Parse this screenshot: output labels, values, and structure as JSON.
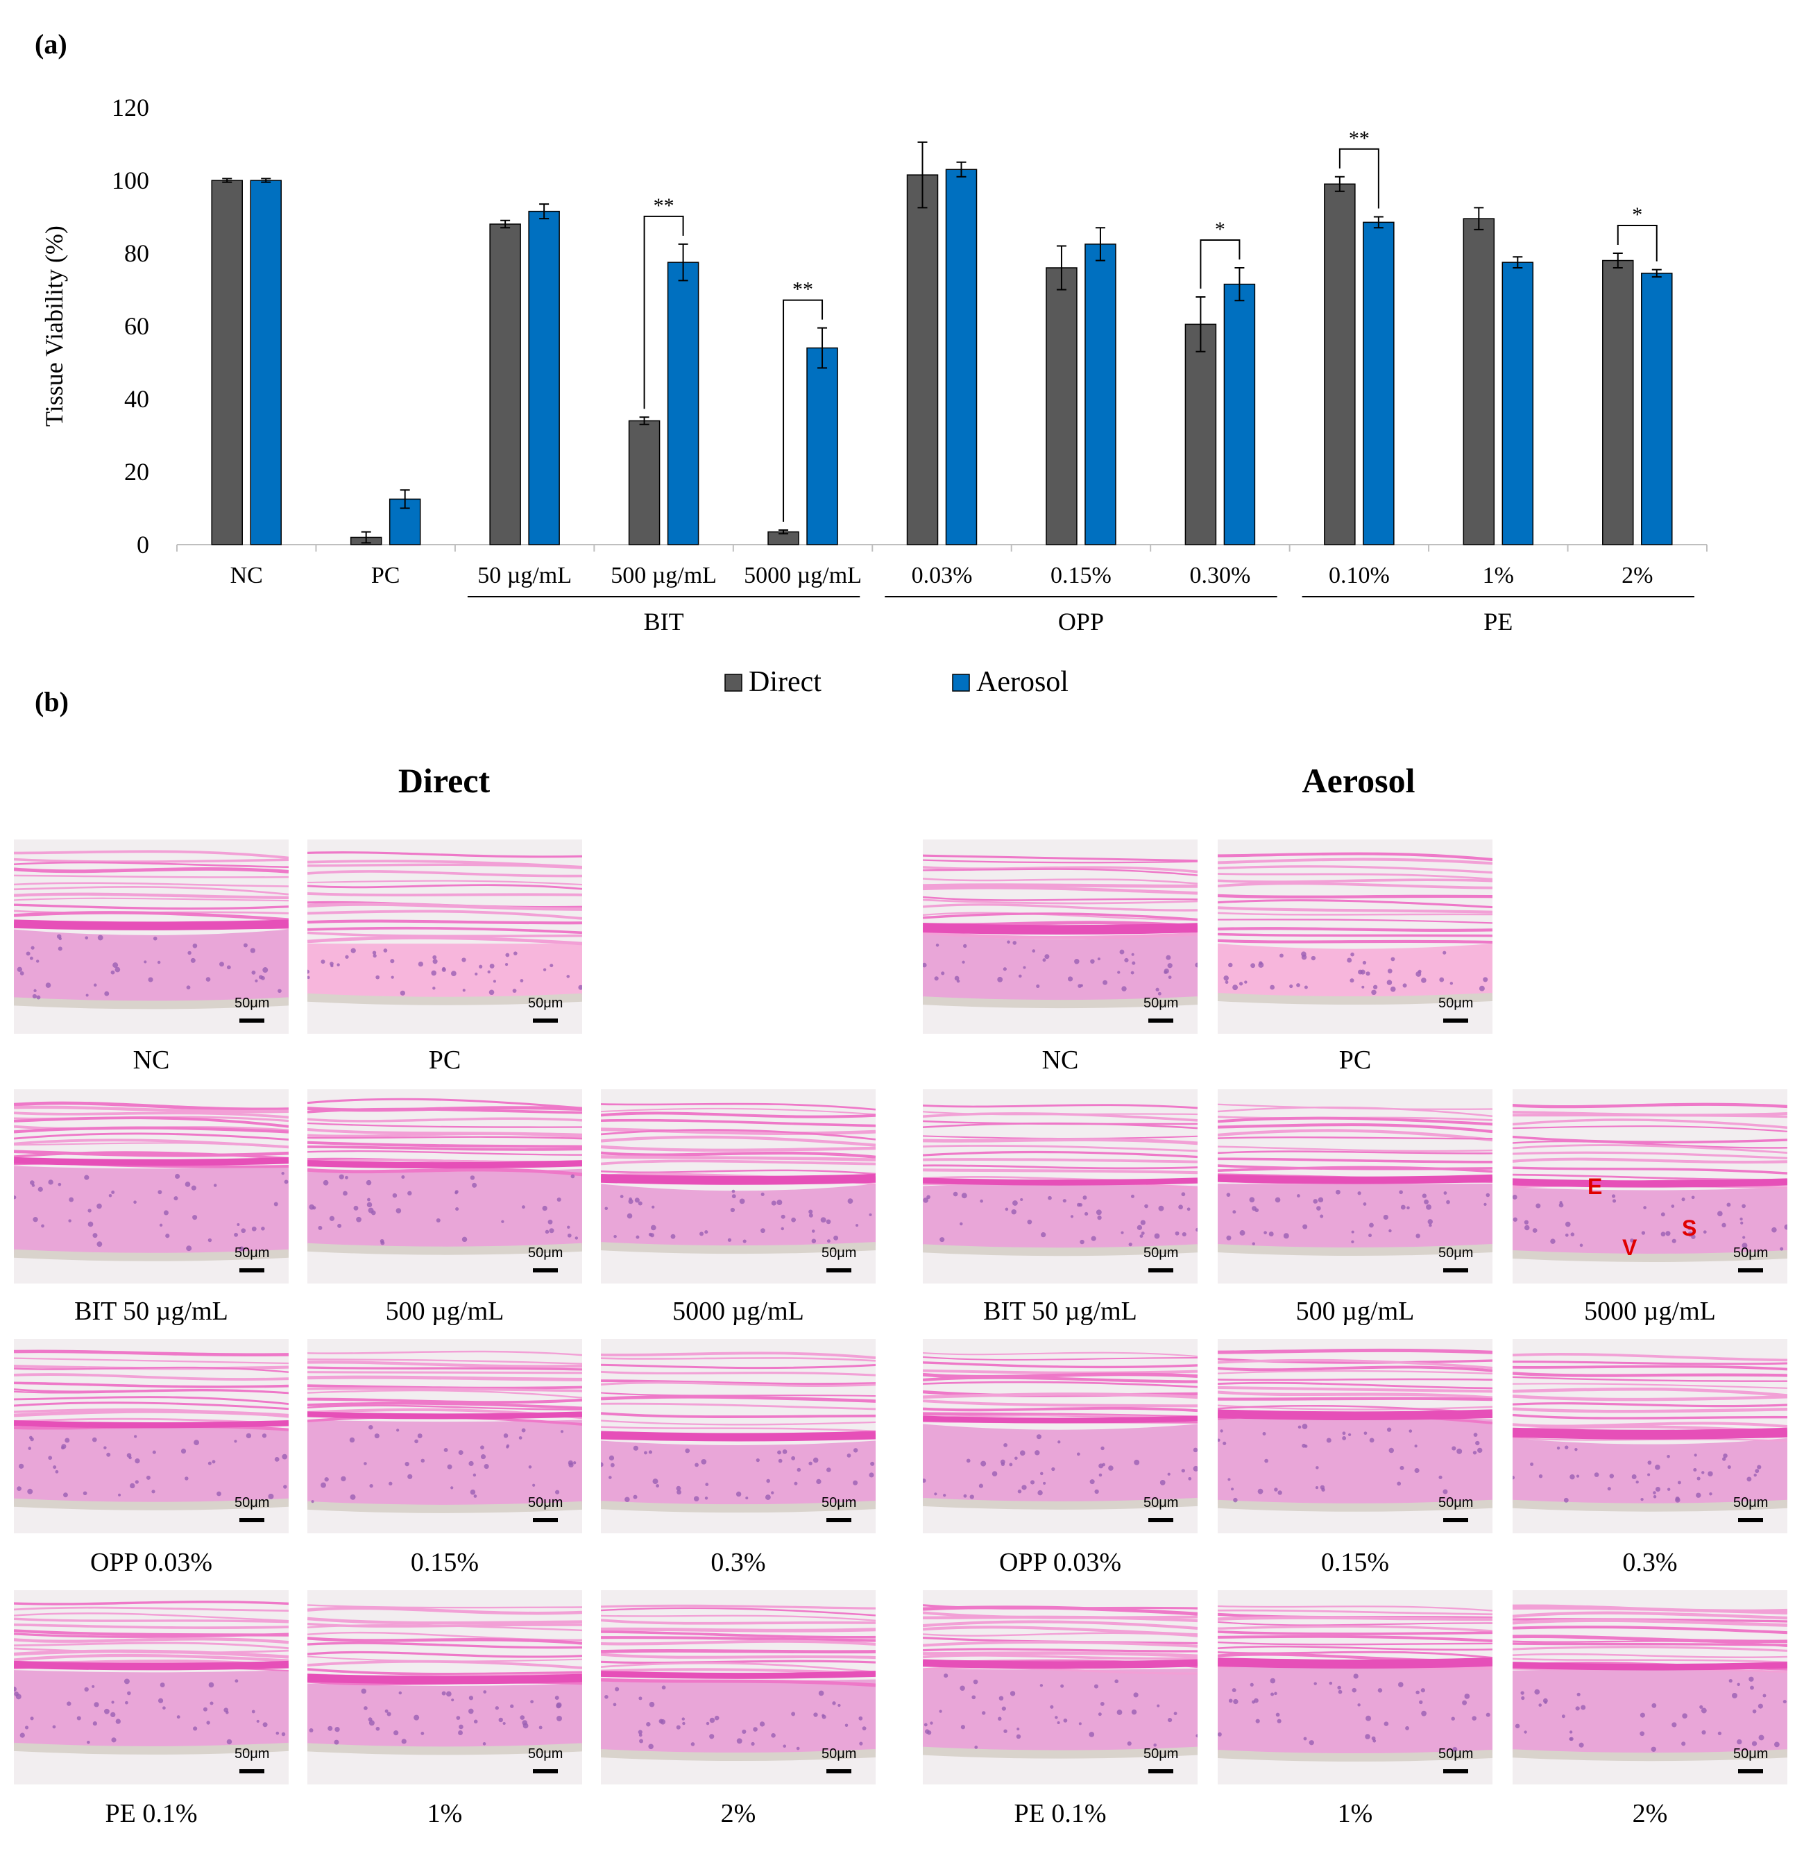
{
  "panel_a_label": "(a)",
  "panel_b_label": "(b)",
  "colors": {
    "direct": "#595959",
    "aerosol": "#0070c0"
  },
  "chart_data": {
    "type": "bar",
    "ylabel": "Tissue Viability (%)",
    "ylim": [
      0,
      120
    ],
    "yticks": [
      "0",
      "20",
      "40",
      "60",
      "80",
      "100",
      "120"
    ],
    "categories": [
      "NC",
      "PC",
      "50 µg/mL",
      "500 µg/mL",
      "5000 µg/mL",
      "0.03%",
      "0.15%",
      "0.30%",
      "0.10%",
      "1%",
      "2%"
    ],
    "groups": [
      {
        "label": "BIT",
        "from": 2,
        "to": 4
      },
      {
        "label": "OPP",
        "from": 5,
        "to": 7
      },
      {
        "label": "PE",
        "from": 8,
        "to": 10
      }
    ],
    "series": [
      {
        "name": "Direct",
        "values": [
          100,
          2,
          88,
          34,
          3.5,
          101.5,
          76,
          60.5,
          99,
          89.5,
          78
        ],
        "errors": [
          0.5,
          1.5,
          1,
          1,
          0.5,
          9,
          6,
          7.5,
          2,
          3,
          2
        ]
      },
      {
        "name": "Aerosol",
        "values": [
          100,
          12.5,
          91.5,
          77.5,
          54,
          103,
          82.5,
          71.5,
          88.5,
          77.5,
          74.5
        ],
        "errors": [
          0.5,
          2.5,
          2,
          5,
          5.5,
          2,
          4.5,
          4.5,
          1.5,
          1.5,
          1
        ]
      }
    ],
    "significance": [
      {
        "category": 3,
        "label": "**"
      },
      {
        "category": 4,
        "label": "**"
      },
      {
        "category": 7,
        "label": "*"
      },
      {
        "category": 8,
        "label": "**"
      },
      {
        "category": 10,
        "label": "*"
      }
    ],
    "legend": [
      "Direct",
      "Aerosol"
    ]
  },
  "panel_b": {
    "direct_title": "Direct",
    "aerosol_title": "Aerosol",
    "scale_label": "50μm",
    "captions": {
      "d_nc": "NC",
      "d_pc": "PC",
      "d_bit50": "BIT  50 µg/mL",
      "d_bit500": "500 µg/mL",
      "d_bit5000": "5000 µg/mL",
      "d_opp003": "OPP 0.03%",
      "d_opp015": "0.15%",
      "d_opp03": "0.3%",
      "d_pe01": "PE 0.1%",
      "d_pe1": "1%",
      "d_pe2": "2%",
      "a_nc": "NC",
      "a_pc": "PC",
      "a_bit50": "BIT  50 µg/mL",
      "a_bit500": "500 µg/mL",
      "a_bit5000": "5000 µg/mL",
      "a_opp003": "OPP 0.03%",
      "a_opp015": "0.15%",
      "a_opp03": "0.3%",
      "a_pe01": "PE 0.1%",
      "a_pe1": "1%",
      "a_pe2": "2%"
    },
    "annotations": {
      "e": "E",
      "s": "S",
      "v": "V"
    }
  }
}
